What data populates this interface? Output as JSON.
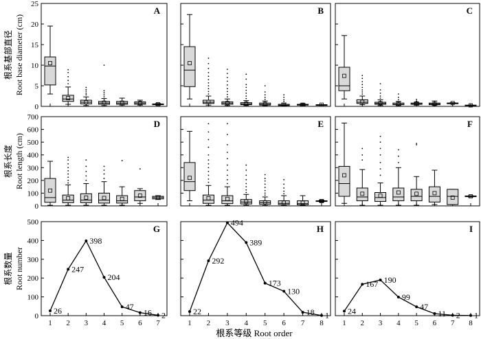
{
  "figure": {
    "x_title": "根系等级 Root order",
    "colors": {
      "box_fill": "#d9d9d9",
      "stroke": "#000000",
      "background": "#ffffff"
    }
  },
  "chart_data": [
    {
      "row": "diameter",
      "type": "box",
      "ylabel_cn": "根系基部直径",
      "ylabel_en": "Root base diameter (cm)",
      "ylim": [
        0,
        25
      ],
      "yticks": [
        0,
        5,
        10,
        15,
        20,
        25
      ],
      "panels": [
        {
          "letter": "A",
          "x": [
            1,
            2,
            3,
            4,
            5,
            6,
            7
          ],
          "boxes": [
            {
              "x": 1,
              "min": 3,
              "q1": 5.2,
              "median": 9.8,
              "q3": 12,
              "max": 19.5,
              "mean": 10.5,
              "outliers": []
            },
            {
              "x": 2,
              "min": 0.5,
              "q1": 1.2,
              "median": 1.8,
              "q3": 2.7,
              "max": 4.7,
              "mean": 2,
              "outliers": [
                5.5,
                6.3,
                7.2,
                8.2,
                8.9
              ]
            },
            {
              "x": 3,
              "min": 0.2,
              "q1": 0.6,
              "median": 1,
              "q3": 1.5,
              "max": 2.3,
              "mean": 1,
              "outliers": [
                2.8,
                3.2,
                3.7,
                4.1,
                4.6
              ]
            },
            {
              "x": 4,
              "min": 0.2,
              "q1": 0.5,
              "median": 0.8,
              "q3": 1.2,
              "max": 1.9,
              "mean": 0.9,
              "outliers": [
                2.3,
                2.8,
                3.3,
                3.8,
                10
              ]
            },
            {
              "x": 5,
              "min": 0.3,
              "q1": 0.5,
              "median": 0.8,
              "q3": 1.2,
              "max": 2,
              "mean": 0.9,
              "outliers": []
            },
            {
              "x": 6,
              "min": 0.3,
              "q1": 0.5,
              "median": 0.8,
              "q3": 1.1,
              "max": 1.5,
              "mean": 0.8,
              "outliers": []
            },
            {
              "x": 7,
              "min": 0.3,
              "q1": 0.4,
              "median": 0.5,
              "q3": 0.6,
              "max": 0.7,
              "mean": 0.5,
              "outliers": []
            }
          ]
        },
        {
          "letter": "B",
          "x": [
            1,
            2,
            3,
            4,
            5,
            6,
            7,
            8
          ],
          "boxes": [
            {
              "x": 1,
              "min": 1.8,
              "q1": 4.8,
              "median": 8.8,
              "q3": 14.5,
              "max": 22.3,
              "mean": 10.5,
              "outliers": []
            },
            {
              "x": 2,
              "min": 0.3,
              "q1": 0.7,
              "median": 1,
              "q3": 1.5,
              "max": 2.5,
              "mean": 1.1,
              "outliers": [
                3,
                3.6,
                4.3,
                5,
                5.7,
                6.5,
                7.3,
                8.2,
                9.2,
                10.4,
                11.7
              ]
            },
            {
              "x": 3,
              "min": 0.2,
              "q1": 0.5,
              "median": 0.8,
              "q3": 1.1,
              "max": 1.8,
              "mean": 0.8,
              "outliers": [
                2.3,
                2.9,
                3.6,
                4.3,
                5.2,
                6.1,
                7,
                8,
                9
              ]
            },
            {
              "x": 4,
              "min": 0.2,
              "q1": 0.4,
              "median": 0.6,
              "q3": 0.9,
              "max": 1.4,
              "mean": 0.7,
              "outliers": [
                1.9,
                2.5,
                3.2,
                3.9,
                4.6,
                5.3,
                6.6,
                7.8
              ]
            },
            {
              "x": 5,
              "min": 0.2,
              "q1": 0.3,
              "median": 0.5,
              "q3": 0.8,
              "max": 1.3,
              "mean": 0.6,
              "outliers": [
                1.7,
                2.2,
                2.8,
                3.5,
                5
              ]
            },
            {
              "x": 6,
              "min": 0.1,
              "q1": 0.2,
              "median": 0.3,
              "q3": 0.5,
              "max": 0.8,
              "mean": 0.4,
              "outliers": [
                1.2,
                1.6,
                2.2,
                2.8
              ]
            },
            {
              "x": 7,
              "min": 0.2,
              "q1": 0.3,
              "median": 0.4,
              "q3": 0.5,
              "max": 0.7,
              "mean": 0.4,
              "outliers": []
            },
            {
              "x": 8,
              "min": 0.3,
              "q1": 0.3,
              "median": 0.4,
              "q3": 0.4,
              "max": 0.4,
              "mean": 0.4,
              "outliers": []
            }
          ]
        },
        {
          "letter": "C",
          "x": [
            1,
            2,
            3,
            4,
            5,
            6,
            7,
            8
          ],
          "boxes": [
            {
              "x": 1,
              "min": 1.8,
              "q1": 3.8,
              "median": 5,
              "q3": 9.5,
              "max": 17.2,
              "mean": 7.4,
              "outliers": []
            },
            {
              "x": 2,
              "min": 0.4,
              "q1": 0.7,
              "median": 1,
              "q3": 1.6,
              "max": 2.5,
              "mean": 1.1,
              "outliers": [
                3,
                3.5,
                4,
                4.6,
                5.3,
                6,
                6.8,
                7.5
              ]
            },
            {
              "x": 3,
              "min": 0.2,
              "q1": 0.5,
              "median": 0.7,
              "q3": 1,
              "max": 1.6,
              "mean": 0.8,
              "outliers": [
                2,
                2.5,
                3.2,
                4,
                5.5
              ]
            },
            {
              "x": 4,
              "min": 0.2,
              "q1": 0.4,
              "median": 0.5,
              "q3": 0.8,
              "max": 1.2,
              "mean": 0.6,
              "outliers": [
                1.6,
                2.2,
                3
              ]
            },
            {
              "x": 5,
              "min": 0.3,
              "q1": 0.5,
              "median": 0.6,
              "q3": 0.8,
              "max": 1,
              "mean": 0.7,
              "outliers": [
                1.3,
                1.7
              ]
            },
            {
              "x": 6,
              "min": 0.3,
              "q1": 0.4,
              "median": 0.6,
              "q3": 0.8,
              "max": 1.3,
              "mean": 0.6,
              "outliers": []
            },
            {
              "x": 7,
              "min": 0.7,
              "q1": 0.8,
              "median": 0.8,
              "q3": 0.8,
              "max": 0.9,
              "mean": 0.8,
              "outliers": []
            },
            {
              "x": 8,
              "min": 0.2,
              "q1": 0.2,
              "median": 0.25,
              "q3": 0.3,
              "max": 0.3,
              "mean": 0.25,
              "outliers": []
            }
          ]
        }
      ]
    },
    {
      "row": "length",
      "type": "box",
      "ylabel_cn": "根系长度",
      "ylabel_en": "Root length (cm)",
      "ylim": [
        0,
        700
      ],
      "yticks": [
        0,
        100,
        200,
        300,
        400,
        500,
        600,
        700
      ],
      "panels": [
        {
          "letter": "D",
          "x": [
            1,
            2,
            3,
            4,
            5,
            6,
            7
          ],
          "boxes": [
            {
              "x": 1,
              "min": 5,
              "q1": 28,
              "median": 65,
              "q3": 215,
              "max": 350,
              "mean": 120,
              "outliers": []
            },
            {
              "x": 2,
              "min": 5,
              "q1": 25,
              "median": 45,
              "q3": 85,
              "max": 165,
              "mean": 60,
              "outliers": [
                180,
                200,
                225,
                250,
                275,
                300,
                330,
                360,
                380
              ]
            },
            {
              "x": 3,
              "min": 5,
              "q1": 25,
              "median": 45,
              "q3": 95,
              "max": 175,
              "mean": 65,
              "outliers": [
                200,
                235,
                270,
                310,
                360
              ]
            },
            {
              "x": 4,
              "min": 5,
              "q1": 22,
              "median": 45,
              "q3": 100,
              "max": 190,
              "mean": 62,
              "outliers": [
                215,
                250,
                280,
                310
              ]
            },
            {
              "x": 5,
              "min": 5,
              "q1": 22,
              "median": 40,
              "q3": 80,
              "max": 150,
              "mean": 55,
              "outliers": [
                355
              ]
            },
            {
              "x": 6,
              "min": 20,
              "q1": 40,
              "median": 70,
              "q3": 120,
              "max": 135,
              "mean": 80,
              "outliers": [
                290
              ]
            },
            {
              "x": 7,
              "min": 50,
              "q1": 55,
              "median": 65,
              "q3": 75,
              "max": 80,
              "mean": 65,
              "outliers": []
            }
          ]
        },
        {
          "letter": "E",
          "x": [
            1,
            2,
            3,
            4,
            5,
            6,
            7,
            8
          ],
          "boxes": [
            {
              "x": 1,
              "min": 40,
              "q1": 120,
              "median": 190,
              "q3": 340,
              "max": 585,
              "mean": 220,
              "outliers": []
            },
            {
              "x": 2,
              "min": 5,
              "q1": 20,
              "median": 45,
              "q3": 85,
              "max": 160,
              "mean": 60,
              "outliers": [
                185,
                210,
                240,
                270,
                300,
                330,
                360,
                400,
                460,
                520,
                580,
                645
              ]
            },
            {
              "x": 3,
              "min": 5,
              "q1": 18,
              "median": 40,
              "q3": 80,
              "max": 150,
              "mean": 55,
              "outliers": [
                175,
                205,
                240,
                280,
                320,
                370,
                420,
                480,
                560,
                645
              ]
            },
            {
              "x": 4,
              "min": 5,
              "q1": 15,
              "median": 30,
              "q3": 50,
              "max": 90,
              "mean": 35,
              "outliers": [
                105,
                125,
                150,
                175,
                205,
                240,
                280,
                320
              ]
            },
            {
              "x": 5,
              "min": 3,
              "q1": 12,
              "median": 25,
              "q3": 40,
              "max": 70,
              "mean": 28,
              "outliers": [
                85,
                100,
                120,
                145,
                170,
                195,
                215,
                245
              ]
            },
            {
              "x": 6,
              "min": 3,
              "q1": 10,
              "median": 20,
              "q3": 40,
              "max": 80,
              "mean": 25,
              "outliers": [
                95,
                115,
                140,
                170,
                205
              ]
            },
            {
              "x": 7,
              "min": 3,
              "q1": 8,
              "median": 18,
              "q3": 40,
              "max": 80,
              "mean": 25,
              "outliers": []
            },
            {
              "x": 8,
              "min": 30,
              "q1": 35,
              "median": 38,
              "q3": 40,
              "max": 45,
              "mean": 38,
              "outliers": []
            }
          ]
        },
        {
          "letter": "F",
          "x": [
            1,
            2,
            3,
            4,
            5,
            6,
            7,
            8
          ],
          "boxes": [
            {
              "x": 1,
              "min": 20,
              "q1": 75,
              "median": 175,
              "q3": 310,
              "max": 650,
              "mean": 240,
              "outliers": []
            },
            {
              "x": 2,
              "min": 5,
              "q1": 40,
              "median": 70,
              "q3": 140,
              "max": 285,
              "mean": 95,
              "outliers": [
                360,
                400,
                450
              ]
            },
            {
              "x": 3,
              "min": 5,
              "q1": 35,
              "median": 65,
              "q3": 105,
              "max": 180,
              "mean": 80,
              "outliers": [
                240,
                290,
                340,
                400,
                450,
                500,
                545
              ]
            },
            {
              "x": 4,
              "min": 5,
              "q1": 40,
              "median": 70,
              "q3": 140,
              "max": 300,
              "mean": 105,
              "outliers": [
                340,
                390,
                440
              ]
            },
            {
              "x": 5,
              "min": 5,
              "q1": 40,
              "median": 75,
              "q3": 130,
              "max": 230,
              "mean": 95,
              "outliers": [
                480,
                490
              ]
            },
            {
              "x": 6,
              "min": 10,
              "q1": 30,
              "median": 75,
              "q3": 150,
              "max": 280,
              "mean": 100,
              "outliers": []
            },
            {
              "x": 7,
              "min": 10,
              "q1": 10,
              "median": 75,
              "q3": 130,
              "max": 130,
              "mean": 65,
              "outliers": []
            },
            {
              "x": 8,
              "min": 70,
              "q1": 72,
              "median": 75,
              "q3": 78,
              "max": 80,
              "mean": 75,
              "outliers": []
            }
          ]
        }
      ]
    },
    {
      "row": "number",
      "type": "line",
      "ylabel_cn": "根系数量",
      "ylabel_en": "Root number",
      "ylim": [
        0,
        500
      ],
      "yticks": [
        0,
        100,
        200,
        300,
        400,
        500
      ],
      "panels": [
        {
          "letter": "G",
          "x": [
            1,
            2,
            3,
            4,
            5,
            6,
            7
          ],
          "values": [
            26,
            247,
            398,
            204,
            47,
            16,
            2
          ]
        },
        {
          "letter": "H",
          "x": [
            1,
            2,
            3,
            4,
            5,
            6,
            7,
            8
          ],
          "values": [
            22,
            292,
            494,
            389,
            173,
            130,
            18,
            1
          ]
        },
        {
          "letter": "I",
          "x": [
            1,
            2,
            3,
            4,
            5,
            6,
            7,
            8
          ],
          "values": [
            24,
            167,
            190,
            99,
            47,
            11,
            2,
            1
          ]
        }
      ]
    }
  ]
}
